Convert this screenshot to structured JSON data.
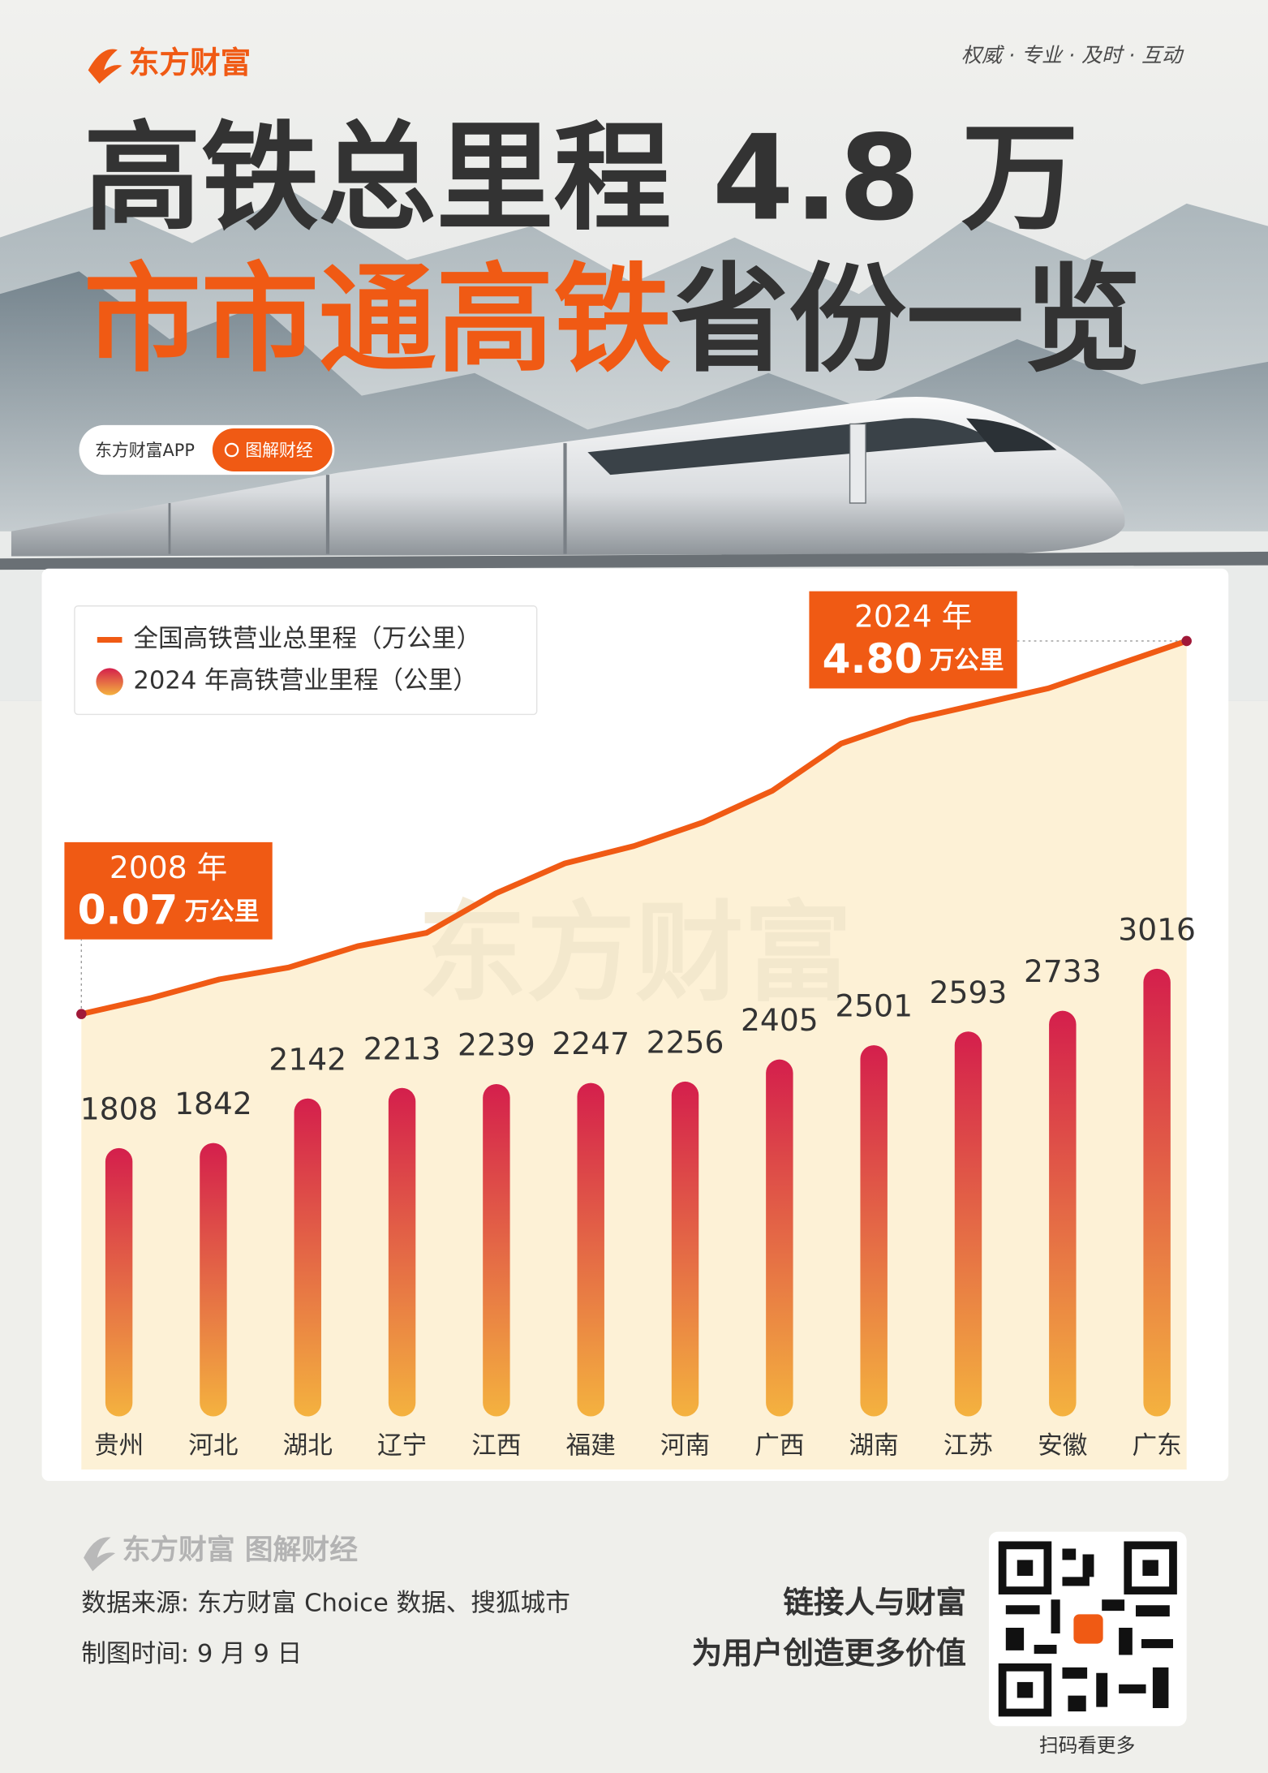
{
  "header": {
    "brand": "东方财富",
    "tagline": "权威 · 专业 · 及时 · 互动",
    "title": "高铁总里程 4.8 万",
    "title_highlight": "市市通高铁",
    "title_rest": "省份一览",
    "app_label": "东方财富APP",
    "column_label": "图解财经"
  },
  "chart_data": [
    {
      "type": "bar",
      "watermark": "东方财富",
      "categories": [
        "贵州",
        "河北",
        "湖北",
        "辽宁",
        "江西",
        "福建",
        "河南",
        "广西",
        "湖南",
        "江苏",
        "安徽",
        "广东"
      ],
      "series": [
        {
          "name": "2024 年高铁营业里程（公里）",
          "color": "#d41f4c",
          "color_end": "#f4b23f",
          "values": [
            1808,
            1842,
            2142,
            2213,
            2239,
            2247,
            2256,
            2405,
            2501,
            2593,
            2733,
            3016
          ]
        }
      ]
    },
    {
      "type": "line",
      "categories": [
        "2008 年",
        null,
        null,
        null,
        null,
        null,
        null,
        null,
        null,
        null,
        null,
        null,
        null,
        null,
        null,
        null,
        "2024 年"
      ],
      "series": [
        {
          "name": "全国高铁营业总里程（万公里）",
          "color": "#f05a14",
          "fill": "#fdf1d6",
          "values": [
            0.07,
            0.27,
            0.51,
            0.66,
            0.93,
            1.1,
            1.6,
            1.98,
            2.2,
            2.5,
            2.9,
            3.5,
            3.8,
            4.0,
            4.2,
            4.5,
            4.8
          ],
          "value_labels": [
            "0.07",
            null,
            null,
            null,
            null,
            null,
            null,
            null,
            null,
            null,
            null,
            null,
            null,
            null,
            null,
            null,
            "4.80"
          ]
        }
      ],
      "value_unit": "万公里"
    }
  ],
  "footer": {
    "brand": "东方财富 图解财经",
    "source": "数据来源: 东方财富 Choice 数据、搜狐城市",
    "date": "制图时间: 9 月 9 日",
    "slogan_1": "链接人与财富",
    "slogan_2": "为用户创造更多价值",
    "qr_caption": "扫码看更多"
  }
}
